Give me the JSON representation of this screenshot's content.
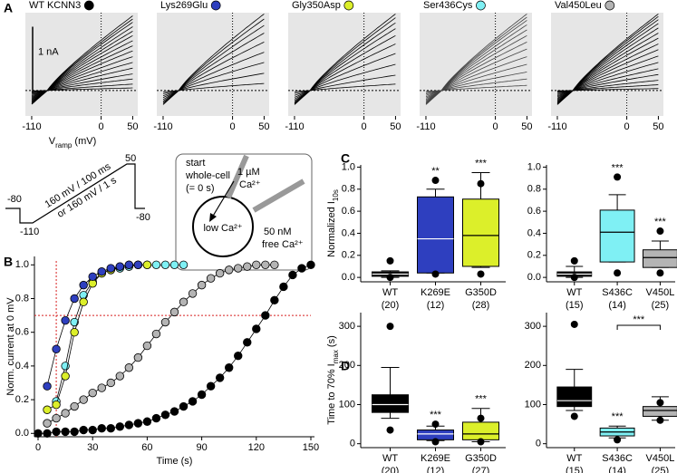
{
  "panel_labels": [
    "A",
    "B",
    "C",
    "D"
  ],
  "protocol": {
    "labels": [
      "-80",
      "-110",
      "160 mV / 100 ms",
      "or 160 mV / 1 s",
      "50",
      "-80"
    ]
  },
  "cell_diagram": {
    "start": [
      "start",
      "whole-cell",
      "(= 0 s)"
    ],
    "pipette": [
      "1 µM",
      "Ca²⁺"
    ],
    "inside": "low Ca²⁺",
    "bath": [
      "50 nM",
      "free Ca²⁺"
    ]
  },
  "chart_data": [
    {
      "type": "traces",
      "title": "WT KCNN3",
      "title_color": "#000000",
      "xlabel": [
        "V",
        "ramp",
        " (mV)"
      ],
      "scalebar": {
        "value": 1,
        "label": "1 nA"
      },
      "xlim": [
        -120,
        58
      ],
      "ylim": [
        -0.4,
        1.22
      ],
      "xticks": [
        -110,
        0,
        50
      ],
      "color": "#000000",
      "values": [
        1.17,
        1.12,
        1.07,
        1.0,
        0.93,
        0.86,
        0.78,
        0.7,
        0.62,
        0.53,
        0.44,
        0.35,
        0.26,
        0.18,
        0.1,
        0.04
      ]
    },
    {
      "type": "traces",
      "title": "Lys269Glu",
      "title_color": "#2e3fbf",
      "xlim": [
        -120,
        58
      ],
      "ylim": [
        -0.4,
        1.22
      ],
      "xticks": [
        -110,
        0,
        50
      ],
      "color": "#000000",
      "values": [
        1.2,
        1.12,
        1.02,
        0.9,
        0.76,
        0.6,
        0.44,
        0.27,
        0.11
      ]
    },
    {
      "type": "traces",
      "title": "Gly350Asp",
      "title_color": "#dcef2a",
      "xlim": [
        -120,
        58
      ],
      "ylim": [
        -0.4,
        1.22
      ],
      "xticks": [
        -110,
        0,
        50
      ],
      "color": "#000000",
      "values": [
        1.2,
        1.14,
        1.06,
        0.97,
        0.86,
        0.73,
        0.58,
        0.41,
        0.24,
        0.1
      ]
    },
    {
      "type": "traces",
      "title": "Ser436Cys",
      "title_color": "#7ff0f4",
      "xlim": [
        -120,
        58
      ],
      "ylim": [
        -0.4,
        1.22
      ],
      "xticks": [
        -110,
        0,
        50
      ],
      "color": "#444444",
      "values": [
        1.2,
        1.15,
        1.1,
        1.03,
        0.95,
        0.86,
        0.76,
        0.65,
        0.53,
        0.41,
        0.29,
        0.18,
        0.08
      ]
    },
    {
      "type": "traces",
      "title": "Val450Leu",
      "title_color": "#b4b4b4",
      "xlim": [
        -120,
        58
      ],
      "ylim": [
        -0.4,
        1.22
      ],
      "xticks": [
        -110,
        0,
        50
      ],
      "color": "#000000",
      "values": [
        1.2,
        1.16,
        1.11,
        1.05,
        0.98,
        0.9,
        0.82,
        0.73,
        0.64,
        0.54,
        0.44,
        0.34,
        0.25,
        0.16,
        0.09,
        0.03
      ]
    },
    {
      "type": "line",
      "xlabel": "Time (s)",
      "ylabel": "Norm. current at 0 mV",
      "xlim": [
        -2,
        152
      ],
      "ylim": [
        -0.02,
        1.05
      ],
      "xticks": [
        0,
        30,
        60,
        90,
        120,
        150
      ],
      "yticks": [
        {
          "value": 0,
          "label": "0.0"
        },
        {
          "value": 0.2,
          "label": "0.2"
        },
        {
          "value": 0.4,
          "label": "0.4"
        },
        {
          "value": 0.6,
          "label": "0.6"
        },
        {
          "value": 0.8,
          "label": "0.8"
        },
        {
          "value": 1,
          "label": "1.0"
        }
      ],
      "ref_x": 10,
      "ref_y": 0.7,
      "ref_color": "#d62020",
      "series": [
        {
          "color": "#000000",
          "x": [
            0,
            5,
            10,
            15,
            20,
            25,
            30,
            35,
            40,
            45,
            50,
            55,
            60,
            65,
            70,
            75,
            80,
            85,
            90,
            95,
            100,
            105,
            110,
            115,
            120,
            125,
            130,
            135,
            140,
            145,
            150
          ],
          "values": [
            0,
            0,
            0.01,
            0.01,
            0.01,
            0.02,
            0.02,
            0.03,
            0.03,
            0.04,
            0.05,
            0.06,
            0.07,
            0.09,
            0.11,
            0.13,
            0.16,
            0.19,
            0.23,
            0.28,
            0.33,
            0.39,
            0.46,
            0.54,
            0.62,
            0.7,
            0.79,
            0.87,
            0.94,
            0.98,
            1.0
          ]
        },
        {
          "color": "#b4b4b4",
          "x": [
            5,
            10,
            15,
            20,
            25,
            30,
            35,
            40,
            45,
            50,
            55,
            60,
            65,
            70,
            75,
            80,
            85,
            90,
            95,
            100,
            105,
            110,
            115,
            120,
            125,
            130
          ],
          "values": [
            0.06,
            0.09,
            0.12,
            0.16,
            0.2,
            0.24,
            0.27,
            0.3,
            0.34,
            0.39,
            0.45,
            0.52,
            0.59,
            0.66,
            0.72,
            0.78,
            0.83,
            0.88,
            0.92,
            0.95,
            0.97,
            0.98,
            0.99,
            1.0,
            1.0,
            1.0
          ]
        },
        {
          "color": "#7ff0f4",
          "x": [
            10,
            15,
            20,
            25,
            30,
            35,
            40,
            45,
            50,
            55,
            60,
            65,
            70,
            75,
            80
          ],
          "values": [
            0.19,
            0.4,
            0.66,
            0.82,
            0.9,
            0.95,
            0.97,
            0.98,
            0.99,
            1.0,
            1.0,
            1.0,
            1.0,
            1.0,
            1.0
          ]
        },
        {
          "color": "#dcef2a",
          "x": [
            5,
            10,
            15,
            20,
            25,
            30,
            35,
            40,
            45,
            50,
            55,
            60
          ],
          "values": [
            0.14,
            0.17,
            0.34,
            0.6,
            0.78,
            0.89,
            0.95,
            0.97,
            0.99,
            1.0,
            1.0,
            1.0
          ]
        },
        {
          "color": "#2e3fbf",
          "x": [
            5,
            10,
            15,
            20,
            25,
            30,
            35,
            40,
            45,
            50,
            55
          ],
          "values": [
            0.28,
            0.5,
            0.67,
            0.8,
            0.88,
            0.93,
            0.96,
            0.98,
            0.99,
            1.0,
            1.0
          ]
        }
      ]
    },
    {
      "type": "box",
      "ylabel": [
        "Normalized I",
        "10s"
      ],
      "ylim": [
        -0.04,
        1.02
      ],
      "yticks": [
        {
          "value": 0,
          "label": "0.0"
        },
        {
          "value": 0.2,
          "label": "0.2"
        },
        {
          "value": 0.4,
          "label": "0.4"
        },
        {
          "value": 0.6,
          "label": "0.6"
        },
        {
          "value": 0.8,
          "label": "0.8"
        },
        {
          "value": 1,
          "label": "1.0"
        }
      ],
      "categories": [
        "WT",
        "K269E",
        "G350D"
      ],
      "counts": [
        "(20)",
        "(12)",
        "(28)"
      ],
      "annotations": [
        null,
        "**",
        "***"
      ],
      "colors": [
        "#000000",
        "#2e3fbf",
        "#dcef2a"
      ],
      "median_colors": [
        "#ffffff",
        "#ffffff",
        "#000000"
      ],
      "boxes": [
        {
          "whislo": 0,
          "q1": 0.01,
          "med": 0.03,
          "q3": 0.05,
          "whishi": 0.06,
          "fliers": [
            0.15,
            0
          ]
        },
        {
          "whislo": 0.04,
          "q1": 0.04,
          "med": 0.35,
          "q3": 0.73,
          "whishi": 0.8,
          "fliers": [
            0.88,
            0.03
          ]
        },
        {
          "whislo": 0.09,
          "q1": 0.1,
          "med": 0.38,
          "q3": 0.71,
          "whishi": 0.95,
          "fliers": [
            0.85,
            0.03
          ]
        }
      ]
    },
    {
      "type": "box",
      "ylim": [
        -0.04,
        1.02
      ],
      "yticks": [
        {
          "value": 0,
          "label": "0.0"
        },
        {
          "value": 0.2,
          "label": "0.2"
        },
        {
          "value": 0.4,
          "label": "0.4"
        },
        {
          "value": 0.6,
          "label": "0.6"
        },
        {
          "value": 0.8,
          "label": "0.8"
        },
        {
          "value": 1,
          "label": "1.0"
        }
      ],
      "categories": [
        "WT",
        "S436C",
        "V450L"
      ],
      "counts": [
        "(15)",
        "(14)",
        "(25)"
      ],
      "annotations": [
        null,
        "***",
        "***"
      ],
      "colors": [
        "#000000",
        "#7ff0f4",
        "#b4b4b4"
      ],
      "median_colors": [
        "#ffffff",
        "#000000",
        "#000000"
      ],
      "boxes": [
        {
          "whislo": 0,
          "q1": 0.01,
          "med": 0.03,
          "q3": 0.05,
          "whishi": 0.1,
          "fliers": [
            0.15,
            0
          ]
        },
        {
          "whislo": 0.14,
          "q1": 0.14,
          "med": 0.41,
          "q3": 0.61,
          "whishi": 0.75,
          "fliers": [
            0.91,
            0.04
          ]
        },
        {
          "whislo": 0.09,
          "q1": 0.09,
          "med": 0.18,
          "q3": 0.25,
          "whishi": 0.33,
          "fliers": [
            0.42,
            0.04
          ]
        }
      ]
    },
    {
      "type": "box",
      "ylabel": [
        "Time to 70% I",
        "max",
        " (s)"
      ],
      "ylim": [
        -10,
        335
      ],
      "yticks": [
        0,
        100,
        200,
        300
      ],
      "categories": [
        "WT",
        "K269E",
        "G350D"
      ],
      "counts": [
        "(20)",
        "(12)",
        "(27)"
      ],
      "annotations": [
        null,
        "***",
        "***"
      ],
      "colors": [
        "#000000",
        "#2e3fbf",
        "#dcef2a"
      ],
      "median_colors": [
        "#ffffff",
        "#ffffff",
        "#000000"
      ],
      "boxes": [
        {
          "whislo": 65,
          "q1": 80,
          "med": 100,
          "q3": 125,
          "whishi": 195,
          "fliers": [
            300,
            35
          ]
        },
        {
          "whislo": 8,
          "q1": 10,
          "med": 25,
          "q3": 35,
          "whishi": 45,
          "fliers": [
            50,
            5
          ]
        },
        {
          "whislo": 5,
          "q1": 10,
          "med": 25,
          "q3": 55,
          "whishi": 90,
          "fliers": [
            65,
            5
          ]
        }
      ]
    },
    {
      "type": "box",
      "ylim": [
        -10,
        335
      ],
      "yticks": [
        0,
        100,
        200,
        300
      ],
      "categories": [
        "WT",
        "S436C",
        "V450L"
      ],
      "counts": [
        "(15)",
        "(14)",
        "(25)"
      ],
      "annotations": [
        null,
        "***",
        null
      ],
      "bracket": {
        "categories": [
          "S436C",
          "V450L"
        ],
        "label": "***"
      },
      "colors": [
        "#000000",
        "#7ff0f4",
        "#b4b4b4"
      ],
      "median_colors": [
        "#ffffff",
        "#000000",
        "#000000"
      ],
      "boxes": [
        {
          "whislo": 85,
          "q1": 95,
          "med": 110,
          "q3": 145,
          "whishi": 190,
          "fliers": [
            305,
            70
          ]
        },
        {
          "whislo": 15,
          "q1": 20,
          "med": 30,
          "q3": 40,
          "whishi": 45,
          "fliers": [
            10
          ]
        },
        {
          "whislo": 60,
          "q1": 70,
          "med": 85,
          "q3": 95,
          "whishi": 120,
          "fliers": [
            105,
            60
          ]
        }
      ]
    }
  ]
}
